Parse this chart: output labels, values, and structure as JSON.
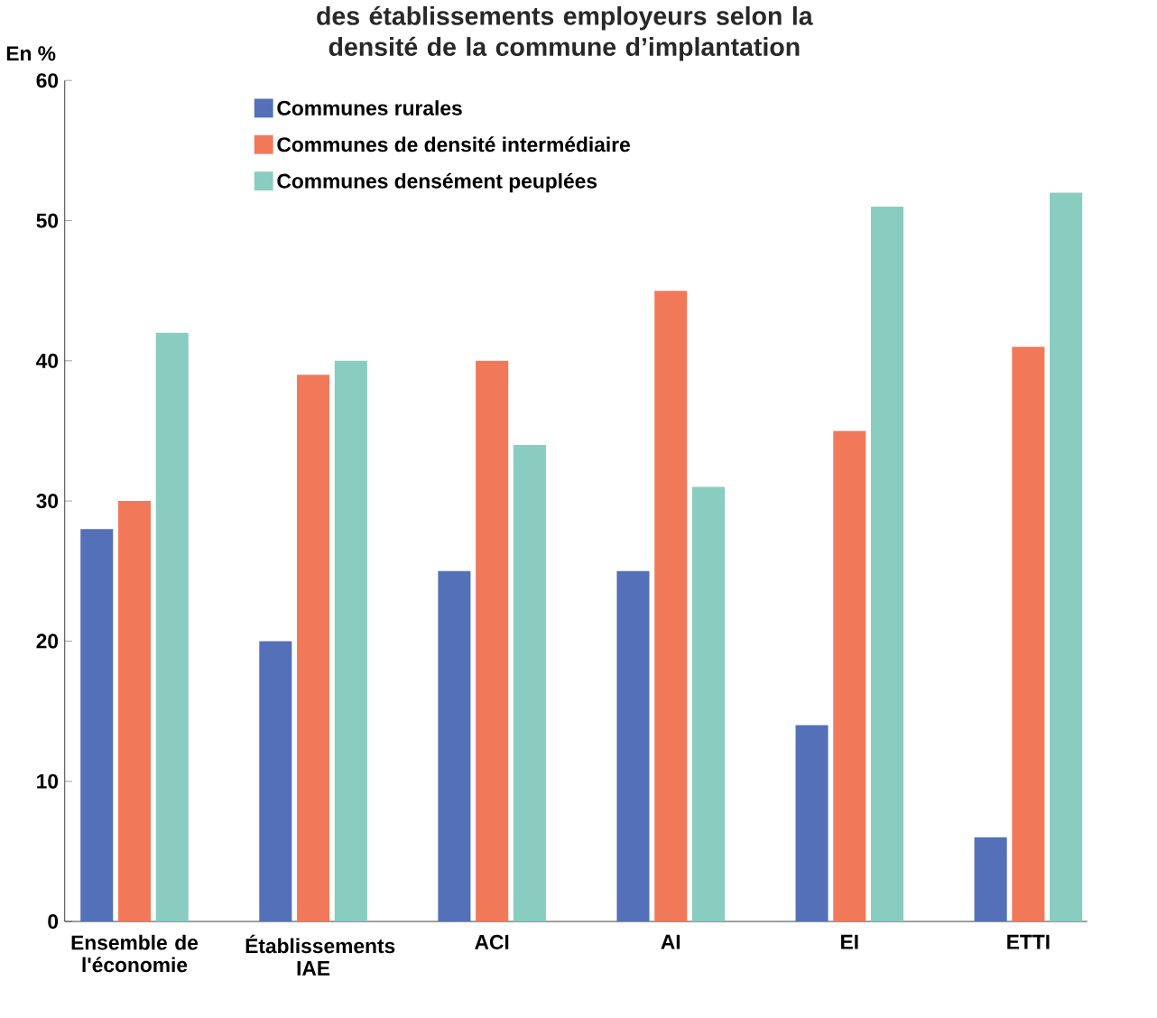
{
  "chart_data": {
    "type": "bar",
    "title": "des établissements employeurs selon la densité de la commune d’implantation",
    "ylabel": "En %",
    "categories": [
      "Ensemble de l'économie",
      "Établissements IAE",
      "ACI",
      "AI",
      "EI",
      "ETTI"
    ],
    "series": [
      {
        "name": "Communes rurales",
        "color": "#5470b8",
        "values": [
          28,
          20,
          25,
          25,
          14,
          6
        ]
      },
      {
        "name": "Communes de densité intermédiaire",
        "color": "#f2785a",
        "values": [
          30,
          39,
          40,
          45,
          35,
          41
        ]
      },
      {
        "name": "Communes densément peuplées",
        "color": "#88cdbf",
        "values": [
          42,
          40,
          34,
          31,
          51,
          52
        ]
      }
    ],
    "ylim": [
      0,
      60
    ],
    "yticks": [
      0,
      10,
      20,
      30,
      40,
      50,
      60
    ],
    "grid": false,
    "legend": "top left"
  }
}
